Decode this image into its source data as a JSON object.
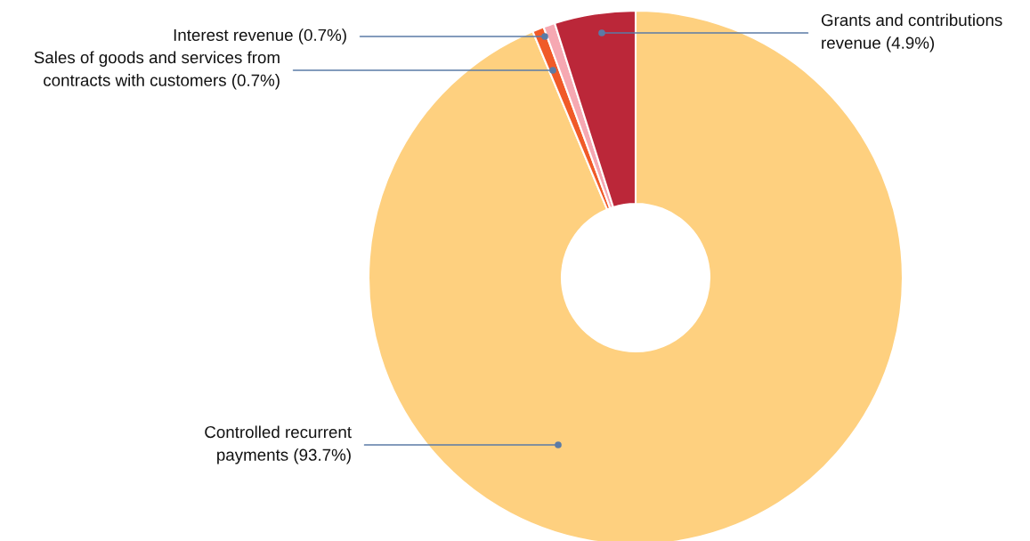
{
  "chart_data": {
    "type": "donut",
    "categories": [
      "Controlled recurrent payments",
      "Sales of goods and services from contracts with customers",
      "Interest revenue",
      "Grants and contributions revenue"
    ],
    "values": [
      93.7,
      0.7,
      0.7,
      4.9
    ],
    "colors": [
      "#fed07f",
      "#f05a28",
      "#f6a8b2",
      "#bb2739"
    ],
    "value_labels": [
      "(93.7%)",
      "(0.7%)",
      "(0.7%)",
      "(4.9%)"
    ],
    "legend": false
  }
}
